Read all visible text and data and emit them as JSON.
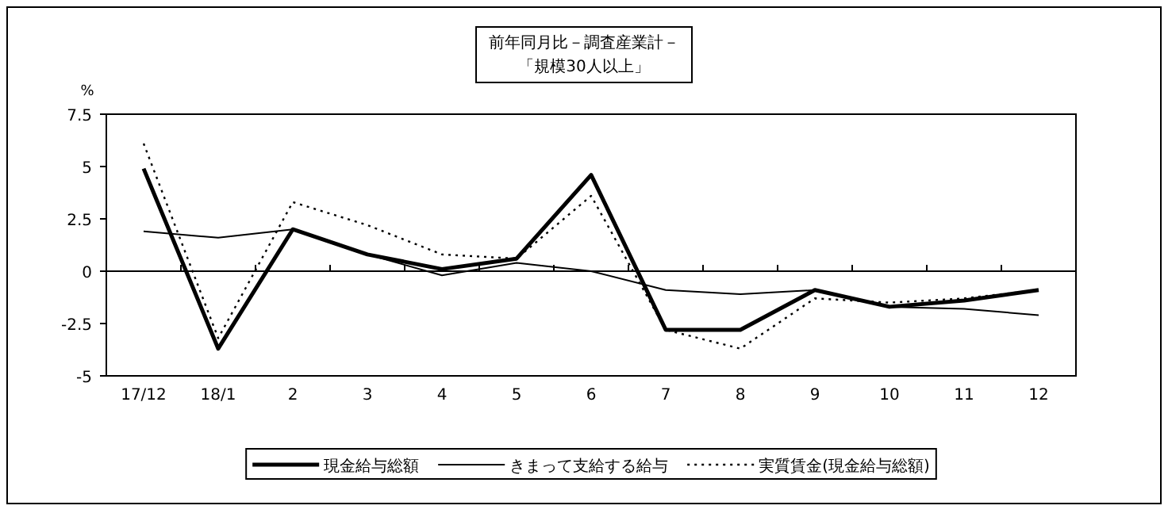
{
  "chart_data": {
    "type": "line",
    "title": "前年同月比－調査産業計－",
    "subtitle": "「規模30人以上」",
    "ylabel": "%",
    "categories": [
      "17/12",
      "18/1",
      "2",
      "3",
      "4",
      "5",
      "6",
      "7",
      "8",
      "9",
      "10",
      "11",
      "12"
    ],
    "series": [
      {
        "name": "現金給与総額",
        "color": "#000000",
        "line_style": "solid",
        "values": [
          4.9,
          -3.7,
          2.0,
          0.8,
          0.1,
          0.6,
          4.6,
          -2.8,
          -2.8,
          -0.9,
          -1.7,
          -1.4,
          -0.9
        ]
      },
      {
        "name": "きまって支給する給与",
        "color": "#000000",
        "line_style": "solid",
        "values": [
          1.9,
          1.6,
          2.0,
          0.8,
          -0.2,
          0.4,
          0.0,
          -0.9,
          -1.1,
          -0.9,
          -1.7,
          -1.8,
          -2.1
        ]
      },
      {
        "name": "実質賃金(現金給与総額)",
        "color": "#000000",
        "line_style": "dotted",
        "values": [
          6.1,
          -3.2,
          3.3,
          2.2,
          0.8,
          0.6,
          3.6,
          -2.8,
          -3.7,
          -1.3,
          -1.5,
          -1.3,
          -0.9
        ]
      }
    ],
    "ylim": [
      -5,
      7.5
    ],
    "yticks": [
      7.5,
      5,
      2.5,
      0,
      -2.5,
      -5
    ],
    "legend": "bottom",
    "marker": "none"
  }
}
